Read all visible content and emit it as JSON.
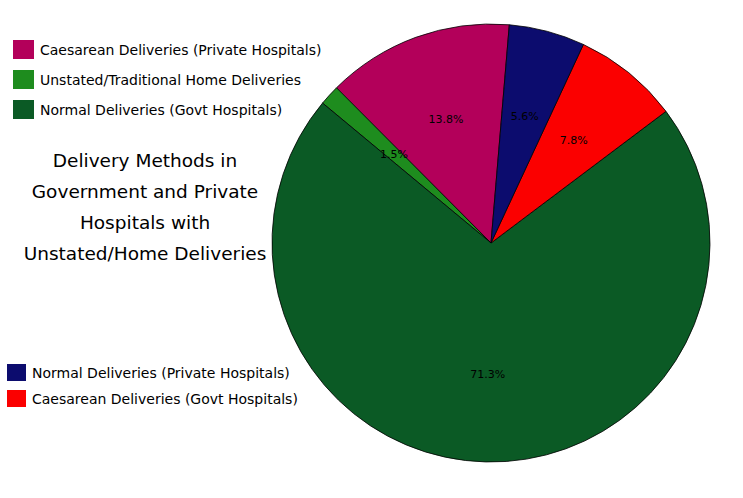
{
  "chart_data": {
    "type": "pie",
    "title": "Delivery Methods in\nGovernment and Private\nHospitals with\nUnstated/Home Deliveries",
    "categories": [
      "Caesarean Deliveries (Private Hospitals)",
      "Unstated/Traditional Home Deliveries",
      "Normal Deliveries (Govt Hospitals)",
      "Caesarean Deliveries (Govt Hospitals)",
      "Normal Deliveries (Private Hospitals)"
    ],
    "values": [
      13.8,
      1.5,
      71.3,
      7.8,
      5.6
    ],
    "value_labels": [
      "13.8%",
      "1.5%",
      "71.3%",
      "7.8%",
      "5.6%"
    ],
    "colors": [
      "#b3005a",
      "#1e8c1e",
      "#0b5a25",
      "#fb0000",
      "#0c0c6e"
    ],
    "data_labels": true,
    "legend": "left"
  }
}
